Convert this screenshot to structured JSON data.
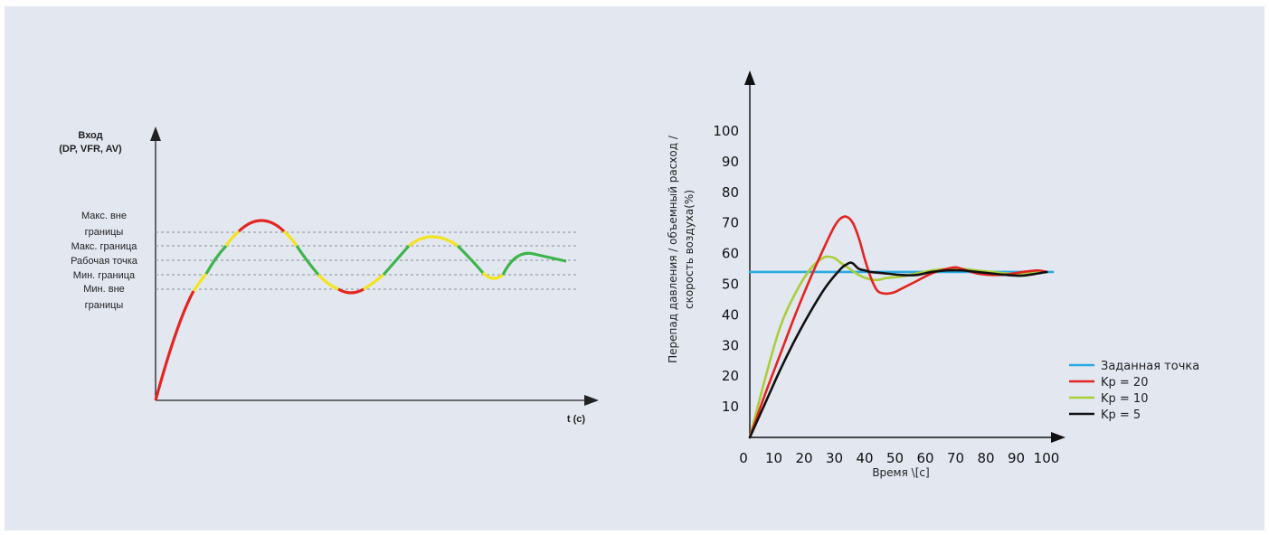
{
  "colors": {
    "background": "#e3e7f0",
    "axis": "#222222",
    "red": "#e32420",
    "yellow": "#f2e41c",
    "green": "#3db54a",
    "lightgreen": "#a8cf3a",
    "black": "#111111",
    "blue": "#2aa9e0",
    "dashed": "#8a8f99"
  },
  "chart_data": [
    {
      "type": "line",
      "ylabel_lines": [
        "Вход",
        "(DP, VFR, AV)"
      ],
      "xlabel": "t (c)",
      "levels": [
        {
          "name": "max_out",
          "label_lines": [
            "Макс. вне",
            "границы"
          ]
        },
        {
          "name": "max",
          "label_lines": [
            "Макс. граница"
          ]
        },
        {
          "name": "setpoint",
          "label_lines": [
            "Рабочая точка"
          ]
        },
        {
          "name": "min",
          "label_lines": [
            "Мин. граница"
          ]
        },
        {
          "name": "min_out",
          "label_lines": [
            "Мин. вне",
            "границы"
          ]
        }
      ],
      "band_colors": {
        "outside_limits": "red",
        "between_limits": "yellow",
        "within_limits": "green"
      }
    },
    {
      "type": "line",
      "xlabel": "Время \\[c]",
      "ylabel_lines": [
        "Перепад давления / объемный расход /",
        "скорость воздуха(%)"
      ],
      "xlim": [
        0,
        100
      ],
      "ylim": [
        0,
        100
      ],
      "x_ticks": [
        "0",
        "10",
        "20",
        "30",
        "40",
        "50",
        "60",
        "70",
        "80",
        "90",
        "100"
      ],
      "y_ticks": [
        "10",
        "20",
        "30",
        "40",
        "50",
        "60",
        "70",
        "80",
        "90",
        "100"
      ],
      "series": [
        {
          "name": "Заданная точка",
          "color": "blue",
          "x": [
            0,
            100
          ],
          "y": [
            54,
            54
          ]
        },
        {
          "name": "Kp = 20",
          "color": "red",
          "x": [
            0,
            5,
            10,
            15,
            20,
            25,
            28,
            30,
            32,
            34,
            36,
            38,
            40,
            42,
            44,
            46,
            48,
            50,
            55,
            60,
            65,
            68,
            70,
            75,
            80,
            85,
            90,
            95,
            98
          ],
          "y": [
            0,
            14,
            27,
            40,
            52,
            63,
            69,
            71.5,
            72,
            70,
            65,
            58,
            52,
            48,
            47,
            47,
            47.5,
            48.5,
            51,
            53.5,
            55,
            55.5,
            55,
            53.5,
            53,
            53.2,
            54,
            54.5,
            54
          ]
        },
        {
          "name": "Kp = 10",
          "color": "lightgreen",
          "x": [
            0,
            5,
            10,
            15,
            20,
            24,
            26,
            28,
            30,
            33,
            36,
            40,
            43,
            45,
            50,
            55,
            60,
            65,
            70,
            75,
            80,
            85,
            90,
            95,
            98
          ],
          "y": [
            0,
            19,
            36,
            47,
            55,
            58.5,
            59,
            58.5,
            57,
            55,
            53,
            51.5,
            51.5,
            52,
            52.5,
            53.5,
            54.5,
            55,
            55,
            54.5,
            54,
            53.5,
            53.5,
            54,
            54
          ]
        },
        {
          "name": "Kp = 5",
          "color": "black",
          "x": [
            0,
            5,
            10,
            15,
            20,
            25,
            30,
            32,
            33,
            34,
            36,
            38,
            40,
            45,
            50,
            55,
            60,
            65,
            70,
            75,
            80,
            85,
            90,
            95,
            98
          ],
          "y": [
            0,
            11,
            22,
            32,
            41,
            49,
            55,
            56.5,
            57,
            56.8,
            55,
            54.5,
            54,
            53.5,
            53,
            53,
            54,
            54.5,
            54.5,
            54,
            53.5,
            53,
            52.8,
            53.5,
            54
          ]
        }
      ],
      "legend_position": "right"
    }
  ]
}
